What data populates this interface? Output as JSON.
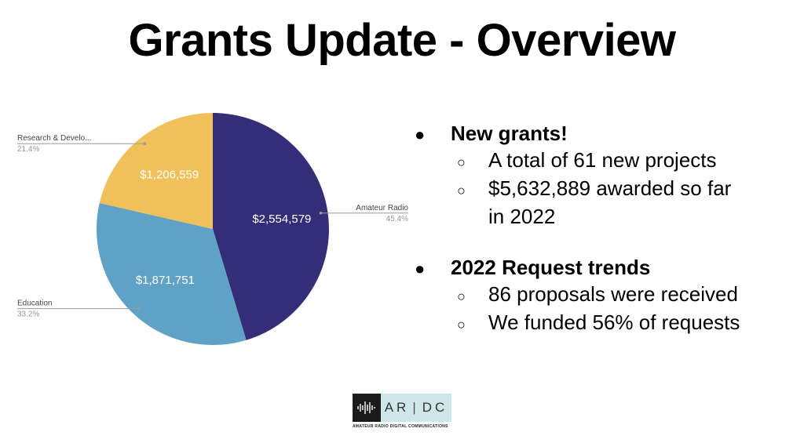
{
  "slide": {
    "title": "Grants Update - Overview"
  },
  "bullets": {
    "group1": {
      "heading": "New grants!",
      "items": [
        "A total of 61 new projects",
        "$5,632,889 awarded so far",
        "in 2022"
      ]
    },
    "group2": {
      "heading": "2022 Request trends",
      "items": [
        "86 proposals were received",
        "We funded 56% of requests"
      ]
    },
    "bullet_glyph": "●",
    "sub_bullet_glyph": "○"
  },
  "logo": {
    "text_ar": "AR",
    "text_dc": "DC",
    "subtitle": "AMATEUR RADIO DIGITAL COMMUNICATIONS"
  },
  "chart_data": {
    "type": "pie",
    "slices": [
      {
        "name": "Amateur Radio",
        "value": 2554579,
        "value_label": "$2,554,579",
        "percent_label": "45.4%",
        "color": "#342d77"
      },
      {
        "name": "Education",
        "value": 1871751,
        "value_label": "$1,871,751",
        "percent_label": "33.2%",
        "color": "#5fa2c6"
      },
      {
        "name": "Research & Develo...",
        "value": 1206559,
        "value_label": "$1,206,559",
        "percent_label": "21.4%",
        "color": "#f0c05a"
      }
    ],
    "start_angle_deg": 0,
    "direction": "clockwise"
  }
}
